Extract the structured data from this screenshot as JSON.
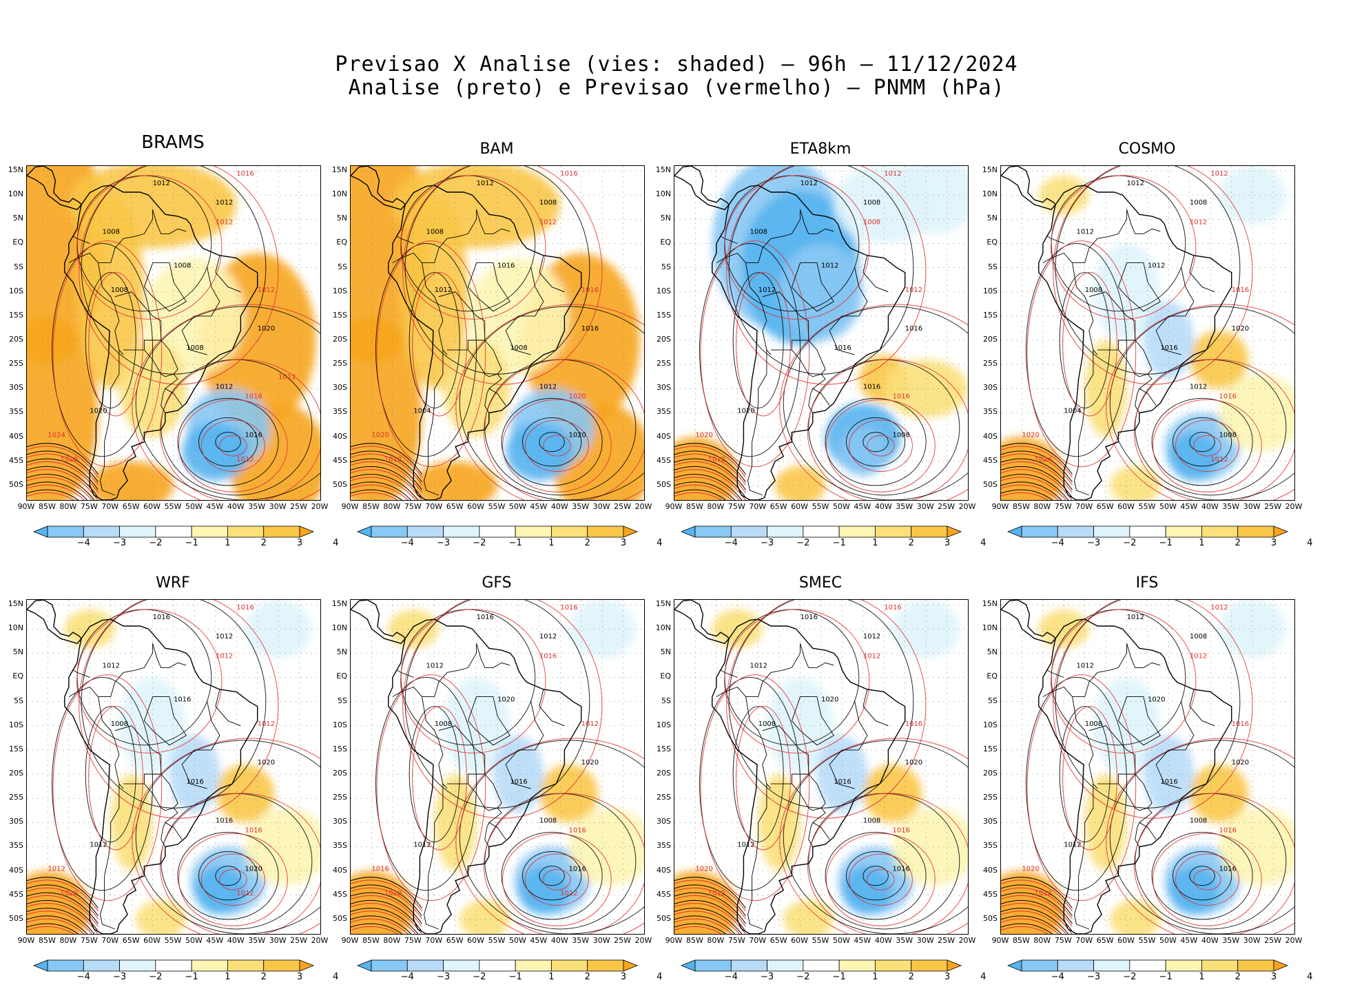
{
  "header": {
    "line1": "Previsao X Analise (vies: shaded) — 96h — 11/12/2024",
    "line2": "Analise (preto) e Previsao (vermelho) — PNMM (hPa)"
  },
  "lat_labels": [
    "15N",
    "10N",
    "5N",
    "EQ",
    "5S",
    "10S",
    "15S",
    "20S",
    "25S",
    "30S",
    "35S",
    "40S",
    "45S",
    "50S"
  ],
  "lon_labels": [
    "90W",
    "85W",
    "80W",
    "75W",
    "70W",
    "65W",
    "60W",
    "55W",
    "50W",
    "45W",
    "40W",
    "35W",
    "30W",
    "25W",
    "20W"
  ],
  "colorbar": {
    "labels": [
      "−4",
      "−3",
      "−2",
      "−1",
      "1",
      "2",
      "3",
      "4"
    ],
    "colors": [
      "#56b4f0",
      "#88c8f4",
      "#b8dcf8",
      "#dff4fb",
      "#ffffff",
      "#fdf5b4",
      "#fbe07a",
      "#f9c748",
      "#f7a51e"
    ]
  },
  "palette": {
    "analysis_contour": "#000000",
    "forecast_contour": "#e03030",
    "border": "#000000",
    "grid": "#888888"
  },
  "panels": [
    {
      "name": "BRAMS",
      "bias": "warm",
      "labels_black": [
        "1012",
        "1012",
        "1008",
        "1008",
        "1008",
        "1012",
        "1020",
        "1016",
        "1008",
        "1020"
      ],
      "labels_red": [
        "1016",
        "1012",
        "1012",
        "1016",
        "1024",
        "1020",
        "1012",
        "1012"
      ]
    },
    {
      "name": "BAM",
      "bias": "warm",
      "labels_black": [
        "1012",
        "1008",
        "1008",
        "1012",
        "1008",
        "1012",
        "1004",
        "1020",
        "1016",
        "1016"
      ],
      "labels_red": [
        "1016",
        "1012",
        "1016",
        "1020",
        "1020",
        "1012"
      ]
    },
    {
      "name": "ETA8km",
      "bias": "cool",
      "labels_black": [
        "1012",
        "1008",
        "1008",
        "1012",
        "1016",
        "1016",
        "1020",
        "1008",
        "1012",
        "1016"
      ],
      "labels_red": [
        "1012",
        "1008",
        "1012",
        "1016",
        "1020",
        "1012"
      ]
    },
    {
      "name": "COSMO",
      "bias": "mixed",
      "labels_black": [
        "1012",
        "1008",
        "1012",
        "1008",
        "1016",
        "1012",
        "1004",
        "1008",
        "1012",
        "1020"
      ],
      "labels_red": [
        "1012",
        "1012",
        "1016",
        "1016",
        "1020",
        "1024",
        "1012"
      ]
    },
    {
      "name": "WRF",
      "bias": "mixed",
      "labels_black": [
        "1016",
        "1012",
        "1012",
        "1008",
        "1016",
        "1016",
        "1012",
        "1020",
        "1016",
        "1020"
      ],
      "labels_red": [
        "1016",
        "1012",
        "1012",
        "1016",
        "1012",
        "1020",
        "1012"
      ]
    },
    {
      "name": "GFS",
      "bias": "mixed",
      "labels_black": [
        "1016",
        "1012",
        "1012",
        "1008",
        "1016",
        "1008",
        "1012",
        "1016",
        "1020",
        "1020"
      ],
      "labels_red": [
        "1016",
        "1016",
        "1012",
        "1016",
        "1016",
        "1020",
        "1012"
      ]
    },
    {
      "name": "SMEC",
      "bias": "mixed",
      "labels_black": [
        "1016",
        "1012",
        "1012",
        "1008",
        "1016",
        "1008",
        "1012",
        "1016",
        "1020",
        "1020"
      ],
      "labels_red": [
        "1016",
        "1012",
        "1016",
        "1016",
        "1020",
        "1012"
      ]
    },
    {
      "name": "IFS",
      "bias": "mixed",
      "labels_black": [
        "1012",
        "1008",
        "1012",
        "1008",
        "1016",
        "1008",
        "1012",
        "1016",
        "1020",
        "1020"
      ],
      "labels_red": [
        "1012",
        "1012",
        "1016",
        "1016",
        "1020",
        "1012"
      ]
    }
  ]
}
